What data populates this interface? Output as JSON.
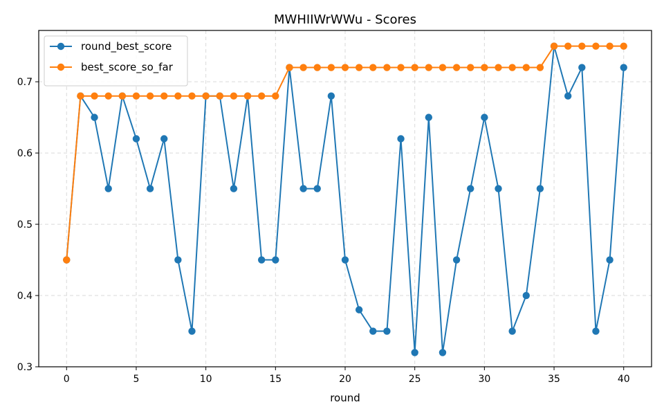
{
  "chart_data": {
    "type": "line",
    "title": "MWHIIWrWWu - Scores",
    "xlabel": "round",
    "ylabel": "",
    "xlim": [
      -2,
      42
    ],
    "ylim": [
      0.3,
      0.772
    ],
    "xticks": [
      0,
      5,
      10,
      15,
      20,
      25,
      30,
      35,
      40
    ],
    "yticks": [
      0.3,
      0.4,
      0.5,
      0.6,
      0.7
    ],
    "grid": true,
    "legend_position": "top-left",
    "x": [
      0,
      1,
      2,
      3,
      4,
      5,
      6,
      7,
      8,
      9,
      10,
      11,
      12,
      13,
      14,
      15,
      16,
      17,
      18,
      19,
      20,
      21,
      22,
      23,
      24,
      25,
      26,
      27,
      28,
      29,
      30,
      31,
      32,
      33,
      34,
      35,
      36,
      37,
      38,
      39,
      40
    ],
    "series": [
      {
        "name": "round_best_score",
        "color": "#1f77b4",
        "values": [
          0.45,
          0.68,
          0.65,
          0.55,
          0.68,
          0.62,
          0.55,
          0.62,
          0.45,
          0.35,
          0.68,
          0.68,
          0.55,
          0.68,
          0.45,
          0.45,
          0.72,
          0.55,
          0.55,
          0.68,
          0.45,
          0.38,
          0.35,
          0.35,
          0.62,
          0.32,
          0.65,
          0.32,
          0.45,
          0.55,
          0.65,
          0.55,
          0.35,
          0.4,
          0.55,
          0.75,
          0.68,
          0.72,
          0.35,
          0.45,
          0.72
        ]
      },
      {
        "name": "best_score_so_far",
        "color": "#ff7f0e",
        "values": [
          0.45,
          0.68,
          0.68,
          0.68,
          0.68,
          0.68,
          0.68,
          0.68,
          0.68,
          0.68,
          0.68,
          0.68,
          0.68,
          0.68,
          0.68,
          0.68,
          0.72,
          0.72,
          0.72,
          0.72,
          0.72,
          0.72,
          0.72,
          0.72,
          0.72,
          0.72,
          0.72,
          0.72,
          0.72,
          0.72,
          0.72,
          0.72,
          0.72,
          0.72,
          0.72,
          0.75,
          0.75,
          0.75,
          0.75,
          0.75,
          0.75
        ]
      }
    ]
  }
}
